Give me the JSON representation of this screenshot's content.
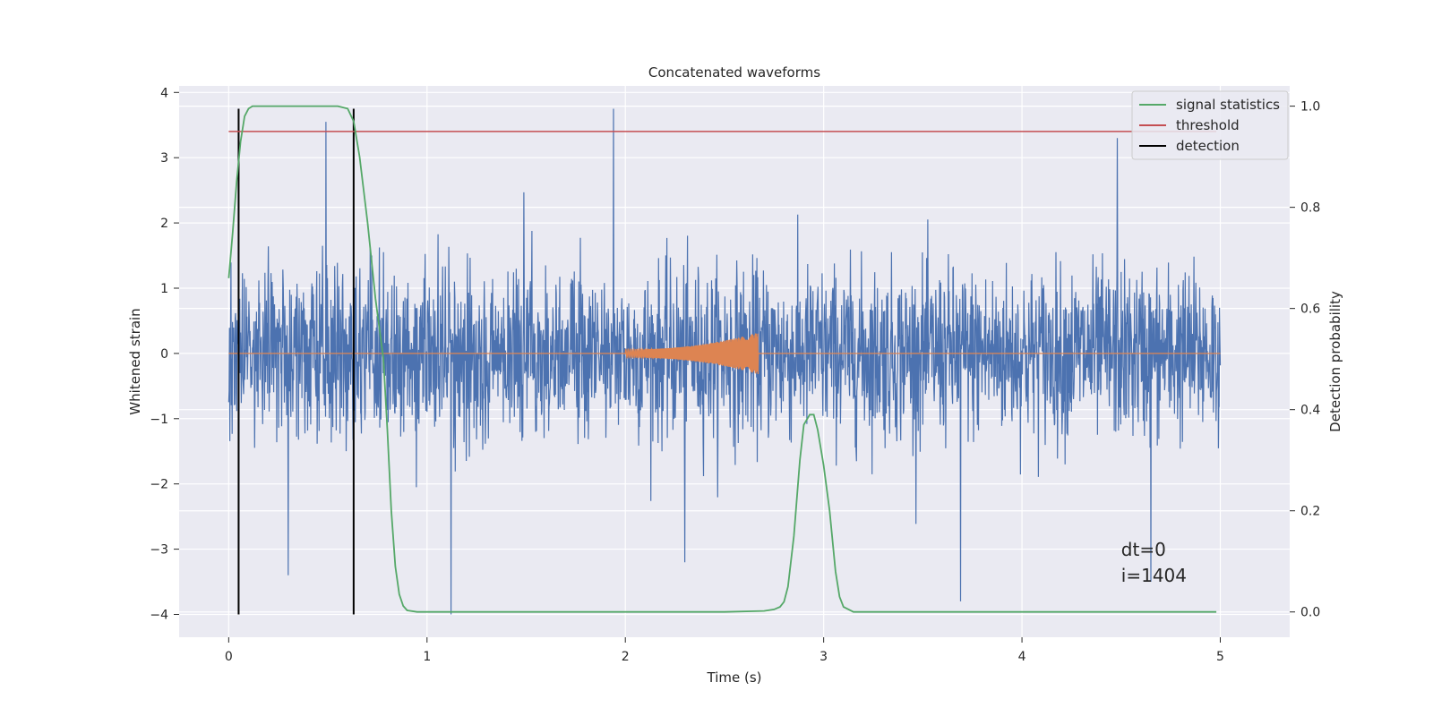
{
  "chart_data": {
    "type": "line",
    "title": "Concatenated waveforms",
    "xlabel": "Time (s)",
    "ylabel": "Whitened strain",
    "ylabel_right": "Detection probability",
    "xlim": [
      -0.25,
      5.35
    ],
    "ylim": [
      -4.35,
      4.1
    ],
    "ylim_right": [
      -0.05,
      1.04
    ],
    "x_ticks": [
      0,
      1,
      2,
      3,
      4,
      5
    ],
    "x_tick_labels": [
      "0",
      "1",
      "2",
      "3",
      "4",
      "5"
    ],
    "y_ticks": [
      -4,
      -3,
      -2,
      -1,
      0,
      1,
      2,
      3,
      4
    ],
    "y_tick_labels": [
      "−4",
      "−3",
      "−2",
      "−1",
      "0",
      "1",
      "2",
      "3",
      "4"
    ],
    "y_right_ticks": [
      0.0,
      0.2,
      0.4,
      0.6,
      0.8,
      1.0
    ],
    "y_right_tick_labels": [
      "0.0",
      "0.2",
      "0.4",
      "0.6",
      "0.8",
      "1.0"
    ],
    "grid": true,
    "legend_position": "top-right",
    "background_color": "#eaeaf2",
    "colors": {
      "strain": "#4c72b0",
      "injection": "#dd8452",
      "signal_statistics": "#55a868",
      "threshold": "#c44e52",
      "detection": "#000000"
    },
    "series": [
      {
        "name": "signal statistics",
        "axis": "right",
        "x": [
          0.0,
          0.02,
          0.04,
          0.06,
          0.08,
          0.1,
          0.12,
          0.2,
          0.4,
          0.55,
          0.6,
          0.63,
          0.66,
          0.7,
          0.74,
          0.78,
          0.8,
          0.82,
          0.84,
          0.86,
          0.88,
          0.9,
          0.95,
          1.0,
          1.5,
          2.0,
          2.5,
          2.7,
          2.75,
          2.78,
          2.8,
          2.82,
          2.85,
          2.88,
          2.9,
          2.93,
          2.95,
          2.97,
          3.0,
          3.03,
          3.06,
          3.08,
          3.1,
          3.15,
          3.5,
          4.0,
          4.5,
          4.98
        ],
        "y": [
          0.66,
          0.75,
          0.85,
          0.93,
          0.98,
          0.995,
          1.0,
          1.0,
          1.0,
          1.0,
          0.995,
          0.97,
          0.9,
          0.77,
          0.62,
          0.5,
          0.36,
          0.2,
          0.09,
          0.035,
          0.012,
          0.003,
          0.0,
          0.0,
          0.0,
          0.0,
          0.0,
          0.002,
          0.005,
          0.01,
          0.02,
          0.05,
          0.15,
          0.3,
          0.37,
          0.39,
          0.39,
          0.36,
          0.29,
          0.2,
          0.08,
          0.03,
          0.01,
          0.0,
          0.0,
          0.0,
          0.0,
          0.0
        ]
      },
      {
        "name": "threshold",
        "axis": "right",
        "x": [
          0.0,
          4.98
        ],
        "y": [
          0.95,
          0.95
        ]
      },
      {
        "name": "detection",
        "axis": "left",
        "vlines": [
          0.05,
          0.63
        ],
        "ymin": -4.0,
        "ymax": 3.75
      },
      {
        "name": "",
        "axis": "left",
        "description_role": "whitened strain noise",
        "x_range": [
          0.0,
          5.0
        ],
        "typical_amplitude": 0.65,
        "peak_points": [
          {
            "x": 0.05,
            "y": -3.1
          },
          {
            "x": 0.3,
            "y": -3.4
          },
          {
            "x": 0.49,
            "y": 3.55
          },
          {
            "x": 1.12,
            "y": -4.0
          },
          {
            "x": 1.94,
            "y": 3.75
          },
          {
            "x": 2.3,
            "y": -3.2
          },
          {
            "x": 3.69,
            "y": -3.8
          },
          {
            "x": 4.48,
            "y": 3.3
          },
          {
            "x": 4.65,
            "y": -3.5
          }
        ]
      },
      {
        "name": "",
        "axis": "left",
        "description_role": "injected chirp waveform",
        "x_range": [
          2.0,
          2.67
        ],
        "start_amplitude": 0.06,
        "end_amplitude": 0.32
      }
    ],
    "annotations": [
      {
        "text": "dt=0",
        "x": 4.5,
        "y": -3.1
      },
      {
        "text": "i=1404",
        "x": 4.5,
        "y": -3.5
      }
    ]
  }
}
